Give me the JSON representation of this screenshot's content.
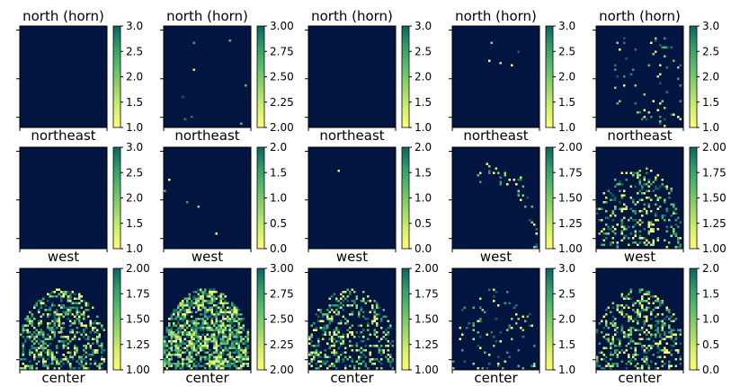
{
  "colors": {
    "background_navy": "#021540",
    "colormap": [
      "#ffff70",
      "#d0ef6c",
      "#96d56b",
      "#5dbb6c",
      "#349f6c",
      "#1a8068",
      "#0b6460"
    ]
  },
  "chart_data": [
    {
      "type": "heatmap",
      "row": 1,
      "col": 1,
      "title": "north (horn)",
      "xlabel": "northeast",
      "colorbar": {
        "range": [
          1.0,
          3.0
        ],
        "ticks": [
          "1.0",
          "1.5",
          "2.0",
          "2.5",
          "3.0"
        ]
      },
      "coverage": 0.0,
      "pattern": "none"
    },
    {
      "type": "heatmap",
      "row": 1,
      "col": 2,
      "title": "north (horn)",
      "xlabel": "northeast",
      "colorbar": {
        "range": [
          2.0,
          3.0
        ],
        "ticks": [
          "2.00",
          "2.25",
          "2.50",
          "2.75",
          "3.00"
        ]
      },
      "coverage": 0.004,
      "pattern": "sparse"
    },
    {
      "type": "heatmap",
      "row": 1,
      "col": 3,
      "title": "north (horn)",
      "xlabel": "northeast",
      "colorbar": {
        "range": [
          1.0,
          3.0
        ],
        "ticks": [
          "1.0",
          "1.5",
          "2.0",
          "2.5",
          "3.0"
        ]
      },
      "coverage": 0.0,
      "pattern": "none"
    },
    {
      "type": "heatmap",
      "row": 1,
      "col": 4,
      "title": "north (horn)",
      "xlabel": "northeast",
      "colorbar": {
        "range": [
          1.0,
          3.0
        ],
        "ticks": [
          "1.0",
          "1.5",
          "2.0",
          "2.5",
          "3.0"
        ]
      },
      "coverage": 0.002,
      "pattern": "sparse"
    },
    {
      "type": "heatmap",
      "row": 1,
      "col": 5,
      "title": "north (horn)",
      "xlabel": "northeast",
      "colorbar": {
        "range": [
          1.0,
          3.0
        ],
        "ticks": [
          "1.0",
          "1.5",
          "2.0",
          "2.5",
          "3.0"
        ]
      },
      "coverage": 0.03,
      "pattern": "horn"
    },
    {
      "type": "heatmap",
      "row": 2,
      "col": 1,
      "title": "",
      "xlabel": "west",
      "colorbar": {
        "range": [
          1.0,
          3.0
        ],
        "ticks": [
          "1.0",
          "1.5",
          "2.0",
          "2.5",
          "3.0"
        ]
      },
      "coverage": 0.002,
      "pattern": "edge"
    },
    {
      "type": "heatmap",
      "row": 2,
      "col": 2,
      "title": "",
      "xlabel": "west",
      "colorbar": {
        "range": [
          0.0,
          2.0
        ],
        "ticks": [
          "0.0",
          "0.5",
          "1.0",
          "1.5",
          "2.0"
        ]
      },
      "coverage": 0.001,
      "pattern": "sparse"
    },
    {
      "type": "heatmap",
      "row": 2,
      "col": 3,
      "title": "",
      "xlabel": "west",
      "colorbar": {
        "range": [
          0.0,
          2.0
        ],
        "ticks": [
          "0.0",
          "0.5",
          "1.0",
          "1.5",
          "2.0"
        ]
      },
      "coverage": 0.001,
      "pattern": "sparse"
    },
    {
      "type": "heatmap",
      "row": 2,
      "col": 4,
      "title": "",
      "xlabel": "west",
      "colorbar": {
        "range": [
          1.0,
          2.0
        ],
        "ticks": [
          "1.00",
          "1.25",
          "1.50",
          "1.75",
          "2.00"
        ]
      },
      "coverage": 0.05,
      "pattern": "arc"
    },
    {
      "type": "heatmap",
      "row": 2,
      "col": 5,
      "title": "",
      "xlabel": "west",
      "colorbar": {
        "range": [
          1.0,
          2.0
        ],
        "ticks": [
          "1.00",
          "1.25",
          "1.50",
          "1.75",
          "2.00"
        ]
      },
      "coverage": 0.1,
      "pattern": "dome"
    },
    {
      "type": "heatmap",
      "row": 3,
      "col": 1,
      "title": "",
      "xlabel": "center",
      "colorbar": {
        "range": [
          1.0,
          2.0
        ],
        "ticks": [
          "1.00",
          "1.25",
          "1.50",
          "1.75",
          "2.00"
        ]
      },
      "coverage": 0.18,
      "pattern": "dome"
    },
    {
      "type": "heatmap",
      "row": 3,
      "col": 2,
      "title": "",
      "xlabel": "center",
      "colorbar": {
        "range": [
          2.0,
          3.0
        ],
        "ticks": [
          "2.00",
          "2.25",
          "2.50",
          "2.75",
          "3.00"
        ]
      },
      "coverage": 0.3,
      "pattern": "dome"
    },
    {
      "type": "heatmap",
      "row": 3,
      "col": 3,
      "title": "",
      "xlabel": "center",
      "colorbar": {
        "range": [
          1.0,
          2.0
        ],
        "ticks": [
          "1.00",
          "1.25",
          "1.50",
          "1.75",
          "2.00"
        ]
      },
      "coverage": 0.15,
      "pattern": "dome"
    },
    {
      "type": "heatmap",
      "row": 3,
      "col": 4,
      "title": "",
      "xlabel": "center",
      "colorbar": {
        "range": [
          1.0,
          3.0
        ],
        "ticks": [
          "1.0",
          "1.5",
          "2.0",
          "2.5",
          "3.0"
        ]
      },
      "coverage": 0.04,
      "pattern": "dome"
    },
    {
      "type": "heatmap",
      "row": 3,
      "col": 5,
      "title": "",
      "xlabel": "center",
      "colorbar": {
        "range": [
          0.0,
          2.0
        ],
        "ticks": [
          "0.0",
          "0.5",
          "1.0",
          "1.5",
          "2.0"
        ]
      },
      "coverage": 0.15,
      "pattern": "dome"
    }
  ]
}
